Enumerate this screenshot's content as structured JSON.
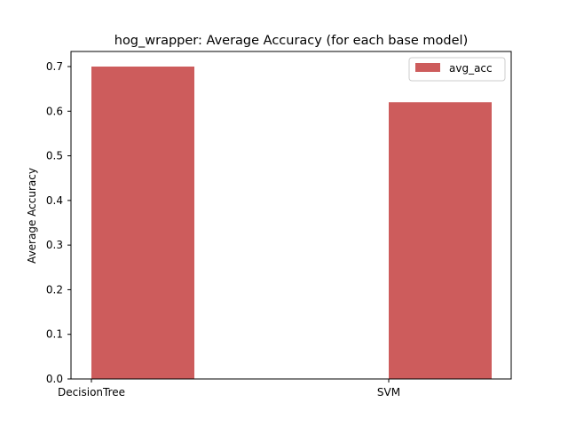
{
  "chart_data": {
    "type": "bar",
    "title": "hog_wrapper: Average Accuracy (for each base model)",
    "xlabel": "",
    "ylabel": "Average Accuracy",
    "categories": [
      "DecisionTree",
      "SVM"
    ],
    "series": [
      {
        "name": "avg_acc",
        "values": [
          0.7,
          0.62
        ],
        "color": "#cd5c5c"
      }
    ],
    "ylim": [
      0,
      0.7
    ],
    "yticks": [
      0.0,
      0.1,
      0.2,
      0.3,
      0.4,
      0.5,
      0.6,
      0.7
    ],
    "ytick_labels": [
      "0.0",
      "0.1",
      "0.2",
      "0.3",
      "0.4",
      "0.5",
      "0.6",
      "0.7"
    ],
    "grid": false,
    "legend_position": "top-right"
  }
}
